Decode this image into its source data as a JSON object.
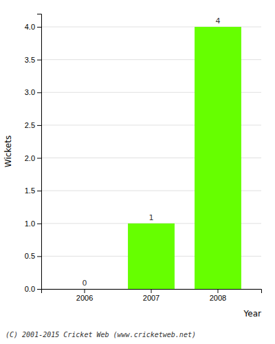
{
  "chart_data": {
    "type": "bar",
    "categories": [
      "2006",
      "2007",
      "2008"
    ],
    "values": [
      0,
      1,
      4
    ],
    "color": "#66ff00",
    "xlabel": "Year",
    "ylabel": "Wickets",
    "ylim": [
      0,
      4.2
    ],
    "yticks": [
      {
        "value": 0.0,
        "label": "0.0"
      },
      0.5,
      {
        "value": 1.0,
        "label": "1.0"
      },
      1.5,
      {
        "value": 2.0,
        "label": "2.0"
      },
      2.5,
      {
        "value": 3.0,
        "label": "3.0"
      },
      3.5,
      {
        "value": 4.0,
        "label": "4.0"
      }
    ],
    "grid": true,
    "data_labels": true,
    "annotations": [
      "(C) 2001-2015 Cricket Web (www.cricketweb.net)"
    ]
  }
}
